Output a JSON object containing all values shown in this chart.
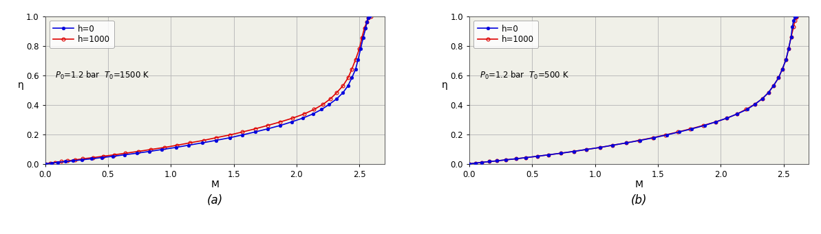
{
  "subplot_a": {
    "annotation_p": "P",
    "annotation_t": "T",
    "annotation_p_val": "1.2 bar",
    "annotation_t_val": "1500 K",
    "h0": {
      "label": "h=0",
      "color": "#0000dd",
      "eta": [
        0.0,
        0.005,
        0.01,
        0.015,
        0.02,
        0.027,
        0.034,
        0.042,
        0.051,
        0.061,
        0.072,
        0.084,
        0.097,
        0.111,
        0.126,
        0.142,
        0.159,
        0.177,
        0.196,
        0.216,
        0.237,
        0.26,
        0.284,
        0.31,
        0.338,
        0.369,
        0.403,
        0.441,
        0.483,
        0.53,
        0.583,
        0.642,
        0.708,
        0.78,
        0.855,
        0.92,
        0.963,
        0.988,
        1.0
      ],
      "M": [
        0.0,
        0.05,
        0.1,
        0.16,
        0.22,
        0.29,
        0.37,
        0.45,
        0.54,
        0.63,
        0.73,
        0.83,
        0.93,
        1.04,
        1.14,
        1.25,
        1.36,
        1.47,
        1.57,
        1.67,
        1.77,
        1.87,
        1.96,
        2.05,
        2.13,
        2.2,
        2.26,
        2.32,
        2.37,
        2.41,
        2.44,
        2.47,
        2.49,
        2.51,
        2.53,
        2.55,
        2.56,
        2.57,
        2.58
      ]
    },
    "h1000": {
      "label": "h=1000",
      "color": "#dd0000",
      "eta": [
        0.0,
        0.005,
        0.01,
        0.015,
        0.02,
        0.027,
        0.034,
        0.042,
        0.051,
        0.061,
        0.072,
        0.084,
        0.097,
        0.111,
        0.126,
        0.142,
        0.159,
        0.177,
        0.196,
        0.216,
        0.237,
        0.26,
        0.284,
        0.31,
        0.338,
        0.369,
        0.403,
        0.441,
        0.483,
        0.53,
        0.583,
        0.642,
        0.708,
        0.78,
        0.855,
        0.92,
        0.963,
        0.988,
        1.0
      ],
      "M": [
        0.0,
        0.04,
        0.08,
        0.13,
        0.18,
        0.24,
        0.3,
        0.38,
        0.46,
        0.55,
        0.64,
        0.74,
        0.84,
        0.95,
        1.05,
        1.15,
        1.26,
        1.36,
        1.47,
        1.57,
        1.67,
        1.77,
        1.87,
        1.97,
        2.06,
        2.14,
        2.21,
        2.27,
        2.32,
        2.37,
        2.41,
        2.44,
        2.47,
        2.5,
        2.52,
        2.54,
        2.56,
        2.57,
        2.59
      ]
    }
  },
  "subplot_b": {
    "annotation_p_val": "1.2 bar",
    "annotation_t_val": "500 K",
    "h0": {
      "label": "h=0",
      "color": "#0000dd",
      "eta": [
        0.0,
        0.005,
        0.01,
        0.015,
        0.02,
        0.027,
        0.034,
        0.042,
        0.051,
        0.061,
        0.072,
        0.084,
        0.097,
        0.111,
        0.126,
        0.142,
        0.159,
        0.177,
        0.196,
        0.216,
        0.237,
        0.26,
        0.284,
        0.31,
        0.338,
        0.369,
        0.403,
        0.441,
        0.483,
        0.53,
        0.583,
        0.642,
        0.708,
        0.78,
        0.86,
        0.93,
        0.972,
        0.993,
        1.0
      ],
      "M": [
        0.0,
        0.05,
        0.1,
        0.16,
        0.22,
        0.29,
        0.37,
        0.45,
        0.54,
        0.63,
        0.73,
        0.83,
        0.93,
        1.04,
        1.14,
        1.25,
        1.36,
        1.47,
        1.57,
        1.67,
        1.77,
        1.87,
        1.96,
        2.05,
        2.13,
        2.21,
        2.27,
        2.33,
        2.38,
        2.42,
        2.46,
        2.49,
        2.52,
        2.54,
        2.56,
        2.57,
        2.58,
        2.59,
        2.6
      ]
    },
    "h1000": {
      "label": "h=1000",
      "color": "#dd0000",
      "eta": [
        0.0,
        0.005,
        0.01,
        0.015,
        0.02,
        0.027,
        0.034,
        0.042,
        0.051,
        0.061,
        0.072,
        0.084,
        0.097,
        0.111,
        0.126,
        0.142,
        0.159,
        0.177,
        0.196,
        0.216,
        0.237,
        0.26,
        0.284,
        0.31,
        0.338,
        0.369,
        0.403,
        0.441,
        0.483,
        0.53,
        0.583,
        0.642,
        0.708,
        0.78,
        0.86,
        0.93,
        0.972,
        0.993,
        1.0
      ],
      "M": [
        0.0,
        0.05,
        0.1,
        0.16,
        0.22,
        0.29,
        0.37,
        0.45,
        0.54,
        0.63,
        0.73,
        0.83,
        0.93,
        1.04,
        1.14,
        1.25,
        1.35,
        1.46,
        1.56,
        1.66,
        1.76,
        1.86,
        1.96,
        2.05,
        2.13,
        2.2,
        2.27,
        2.33,
        2.38,
        2.42,
        2.46,
        2.49,
        2.52,
        2.54,
        2.56,
        2.58,
        2.59,
        2.6,
        2.6
      ]
    }
  },
  "xlim": [
    0,
    2.7
  ],
  "ylim": [
    0,
    1.0
  ],
  "xticks": [
    0,
    0.5,
    1,
    1.5,
    2,
    2.5
  ],
  "yticks": [
    0,
    0.2,
    0.4,
    0.6,
    0.8,
    1.0
  ],
  "xlabel": "M",
  "ylabel": "η",
  "bg_color": "#f0f0e8",
  "grid_color": "#bbbbbb",
  "marker_size": 3.5,
  "line_width": 1.2,
  "figure_caption_a": "(a)",
  "figure_caption_b": "(b)"
}
